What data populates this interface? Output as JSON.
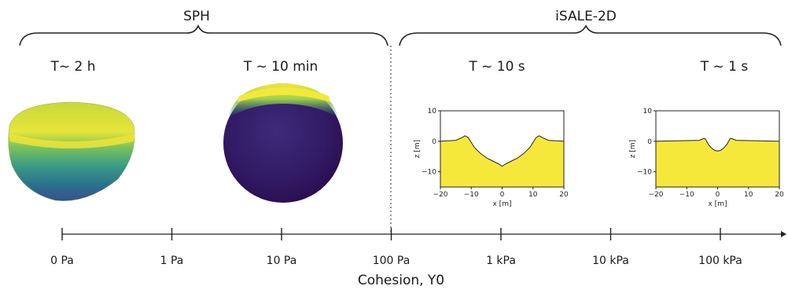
{
  "groups": {
    "left": "SPH",
    "right": "iSALE-2D"
  },
  "panels": [
    {
      "time": "T~ 2 h"
    },
    {
      "time": "T ~ 10 min"
    },
    {
      "time": "T ~ 10 s"
    },
    {
      "time": "T ~ 1 s"
    }
  ],
  "axis": {
    "label": "Cohesion, Y0",
    "ticks": [
      "0 Pa",
      "1 Pa",
      "10 Pa",
      "100 Pa",
      "1 kPa",
      "10 kPa",
      "100 kPa"
    ]
  },
  "colors": {
    "fill_yellow": "#f6e83a",
    "viridis_dark": "#3b1e67",
    "viridis_mid": "#2b8b8c",
    "viridis_light": "#b9d53d"
  },
  "chart_data": [
    {
      "type": "area",
      "title": "T ~ 10 s",
      "xlabel": "x [m]",
      "ylabel": "z [m]",
      "xlim": [
        -20,
        20
      ],
      "ylim": [
        -15,
        10
      ],
      "xticks": [
        "−20",
        "−10",
        "0",
        "10",
        "20"
      ],
      "yticks": [
        "10",
        "0",
        "−10"
      ],
      "x": [
        -20,
        -15,
        -13,
        -12,
        -11,
        -9,
        -7,
        -5,
        -3,
        -1,
        0,
        1,
        3,
        5,
        7,
        9,
        11,
        12,
        13,
        15,
        20
      ],
      "y": [
        0,
        0.3,
        1.2,
        1.8,
        1.2,
        -2,
        -4,
        -5.5,
        -6.5,
        -7.5,
        -8.2,
        -7.5,
        -6.5,
        -5.5,
        -4,
        -2,
        1.2,
        1.8,
        1.2,
        0.3,
        0
      ]
    },
    {
      "type": "area",
      "title": "T ~ 1 s",
      "xlabel": "x [m]",
      "ylabel": "z [m]",
      "xlim": [
        -20,
        20
      ],
      "ylim": [
        -15,
        10
      ],
      "xticks": [
        "−20",
        "−10",
        "0",
        "10",
        "20"
      ],
      "yticks": [
        "10",
        "0",
        "−10"
      ],
      "x": [
        -20,
        -6,
        -4.5,
        -4,
        -3,
        -2,
        -1,
        0,
        1,
        2,
        3,
        4,
        4.5,
        6,
        20
      ],
      "y": [
        0,
        0.3,
        0.9,
        0.8,
        -1,
        -2.2,
        -3,
        -3.2,
        -3,
        -2.2,
        -1,
        0.8,
        0.9,
        0.3,
        0
      ]
    }
  ]
}
